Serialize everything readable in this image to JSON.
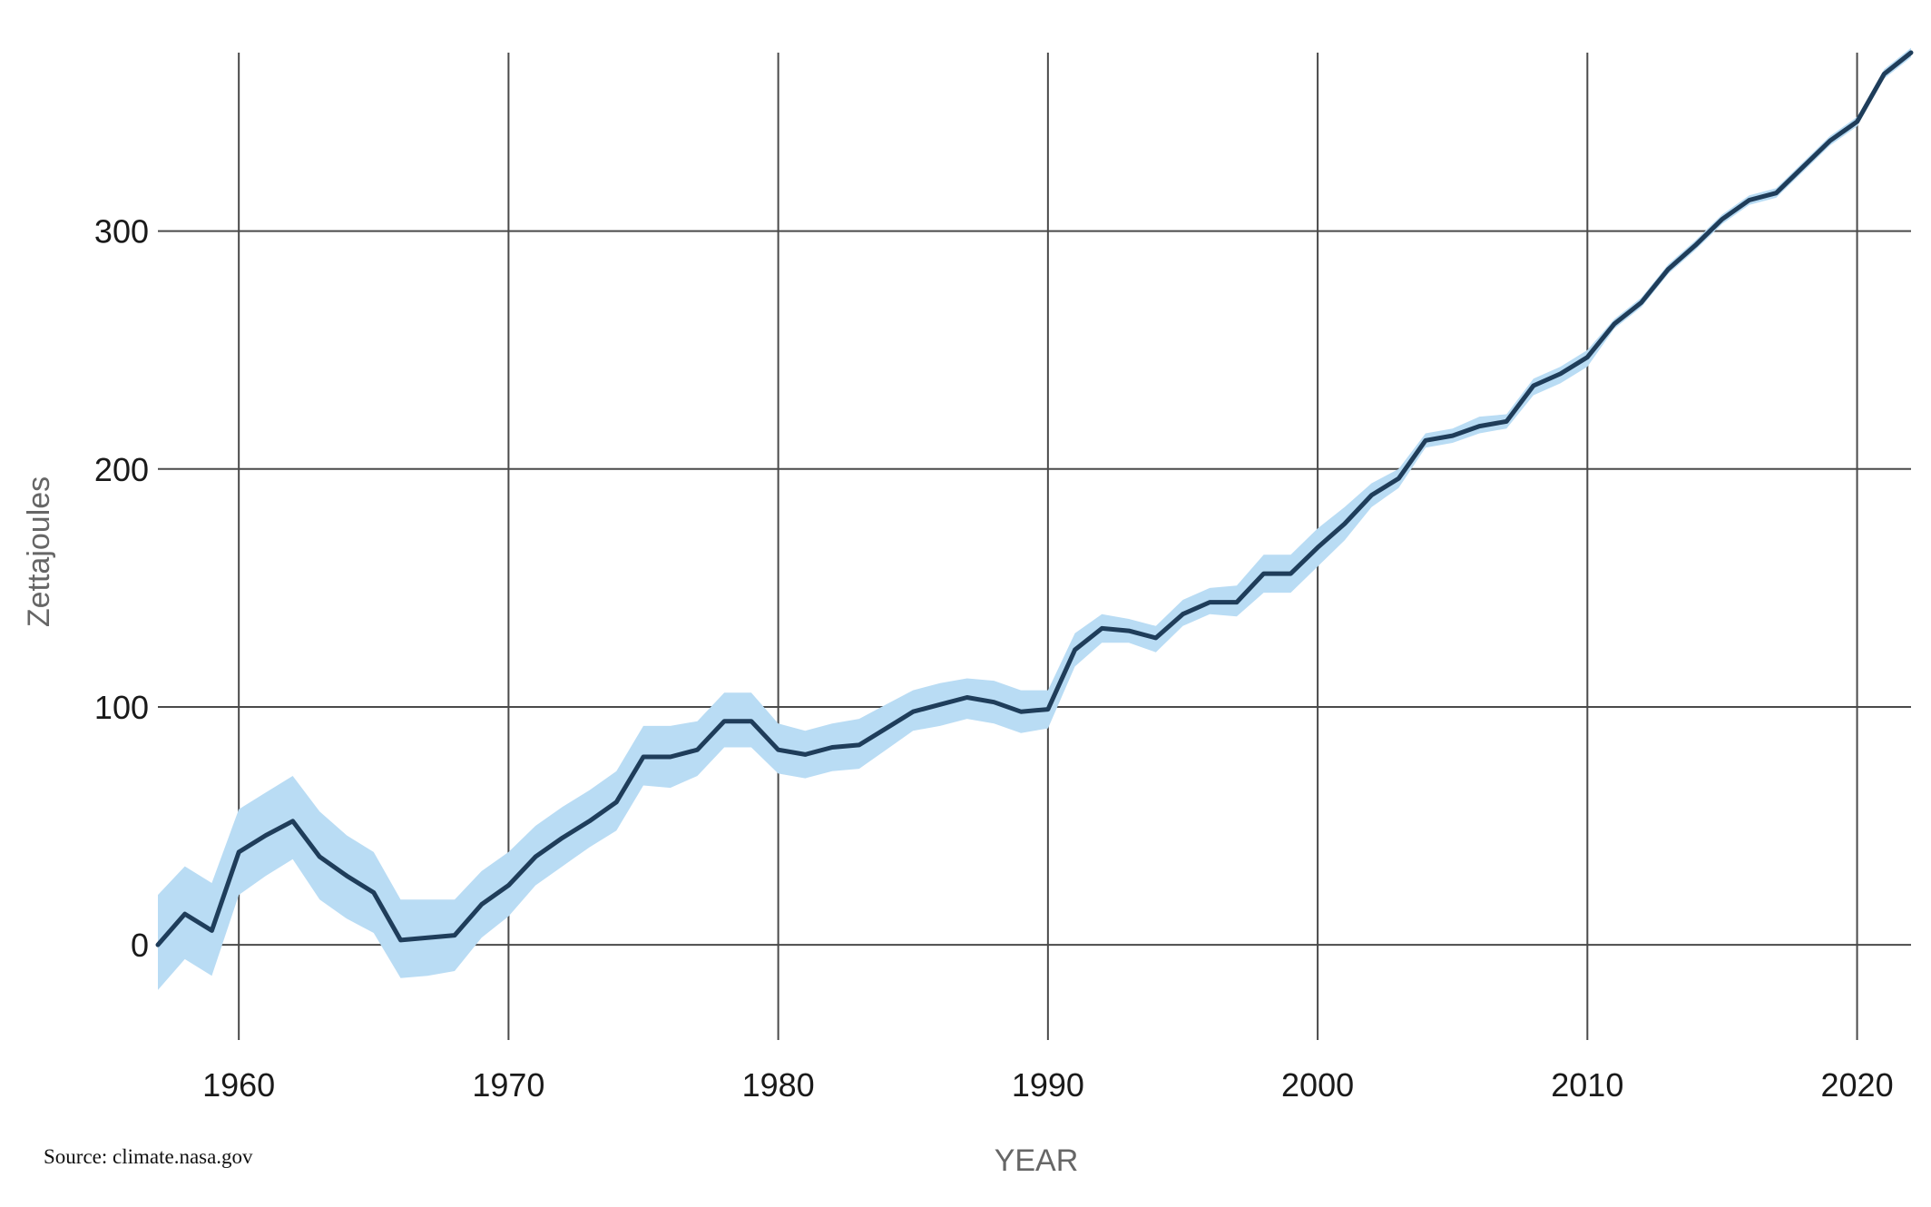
{
  "chart_data": {
    "type": "line",
    "xlabel": "YEAR",
    "ylabel": "Zettajoules",
    "xlim": [
      1957,
      2022
    ],
    "ylim": [
      -40,
      375
    ],
    "x_ticks": [
      1960,
      1970,
      1980,
      1990,
      2000,
      2010,
      2020
    ],
    "y_ticks": [
      0,
      100,
      200,
      300
    ],
    "grid": true,
    "colors": {
      "line": "#1f3d5a",
      "band": "#b9dcf4",
      "grid": "#4a4a4a",
      "tick_text": "#1a1a1a",
      "axis_title": "#666666"
    },
    "series": [
      {
        "x": [
          1957,
          1958,
          1959,
          1960,
          1961,
          1962,
          1963,
          1964,
          1965,
          1966,
          1967,
          1968,
          1969,
          1970,
          1971,
          1972,
          1973,
          1974,
          1975,
          1976,
          1977,
          1978,
          1979,
          1980,
          1981,
          1982,
          1983,
          1984,
          1985,
          1986,
          1987,
          1988,
          1989,
          1990,
          1991,
          1992,
          1993,
          1994,
          1995,
          1996,
          1997,
          1998,
          1999,
          2000,
          2001,
          2002,
          2003,
          2004,
          2005,
          2006,
          2007,
          2008,
          2009,
          2010,
          2011,
          2012,
          2013,
          2014,
          2015,
          2016,
          2017,
          2018,
          2019,
          2020,
          2021,
          2022
        ],
        "values": [
          0,
          13,
          6,
          39,
          46,
          52,
          37,
          29,
          22,
          2,
          3,
          4,
          17,
          25,
          37,
          45,
          52,
          60,
          79,
          79,
          82,
          94,
          94,
          82,
          80,
          83,
          84,
          91,
          98,
          101,
          104,
          102,
          98,
          99,
          124,
          133,
          132,
          129,
          139,
          144,
          144,
          156,
          156,
          167,
          177,
          189,
          196,
          212,
          214,
          218,
          220,
          235,
          240,
          247,
          261,
          270,
          284,
          294,
          305,
          313,
          316,
          327,
          338,
          346,
          366,
          375
        ],
        "lower": [
          -19,
          -6,
          -13,
          21,
          29,
          36,
          19,
          11,
          5,
          -14,
          -13,
          -11,
          3,
          12,
          25,
          33,
          41,
          48,
          67,
          66,
          71,
          83,
          83,
          72,
          70,
          73,
          74,
          82,
          90,
          92,
          95,
          93,
          89,
          91,
          117,
          127,
          127,
          123,
          134,
          139,
          138,
          148,
          148,
          159,
          170,
          184,
          192,
          209,
          211,
          215,
          217,
          231,
          236,
          243,
          259,
          268,
          282,
          292,
          303,
          311,
          314,
          325,
          336,
          344,
          364,
          373
        ],
        "upper": [
          21,
          33,
          26,
          57,
          64,
          71,
          56,
          46,
          39,
          19,
          19,
          19,
          31,
          39,
          50,
          58,
          65,
          73,
          92,
          92,
          94,
          106,
          106,
          93,
          90,
          93,
          95,
          101,
          107,
          110,
          112,
          111,
          107,
          107,
          131,
          139,
          137,
          134,
          145,
          150,
          151,
          164,
          164,
          175,
          184,
          194,
          200,
          215,
          217,
          222,
          223,
          238,
          243,
          250,
          263,
          272,
          286,
          296,
          307,
          315,
          318,
          329,
          340,
          348,
          368,
          377
        ]
      }
    ]
  },
  "source": "Source: climate.nasa.gov"
}
